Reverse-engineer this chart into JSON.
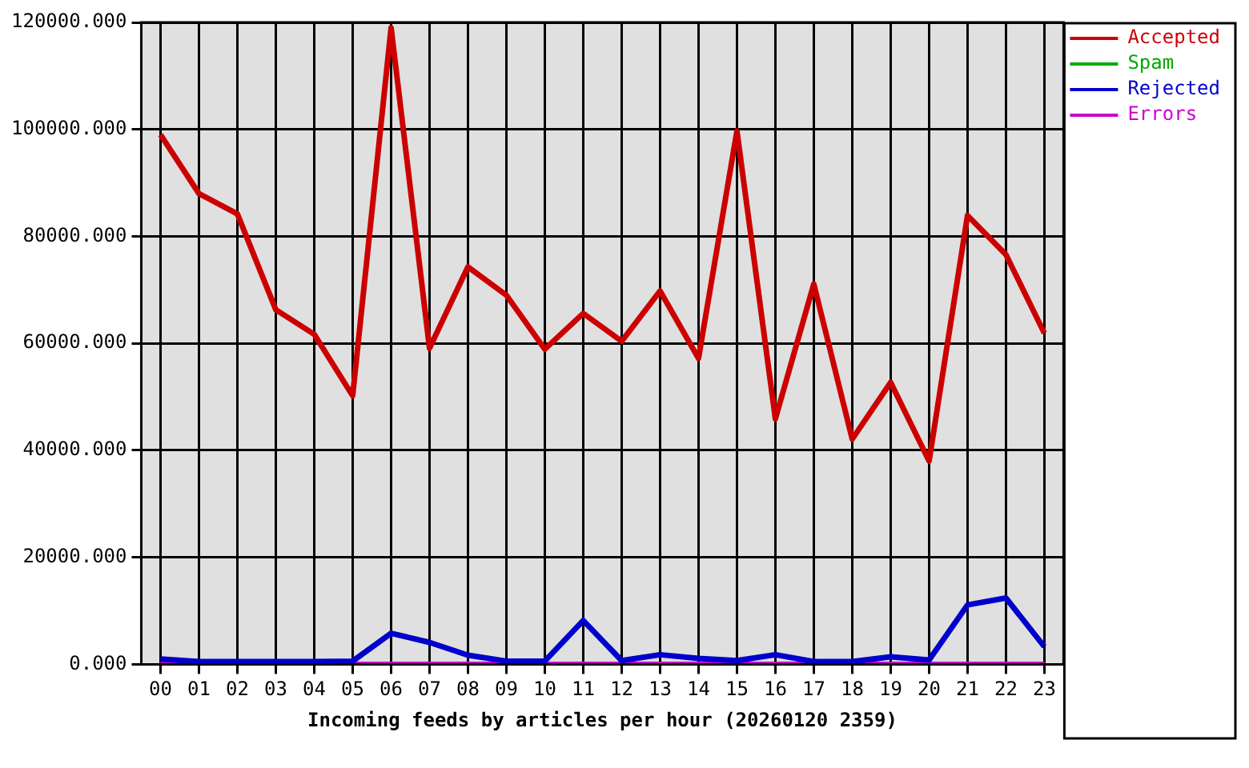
{
  "chart_data": {
    "type": "line",
    "xlabel": "Incoming feeds by articles per hour (20260120 2359)",
    "categories": [
      "00",
      "01",
      "02",
      "03",
      "04",
      "05",
      "06",
      "07",
      "08",
      "09",
      "10",
      "11",
      "12",
      "13",
      "14",
      "15",
      "16",
      "17",
      "18",
      "19",
      "20",
      "21",
      "22",
      "23"
    ],
    "series": [
      {
        "name": "Accepted",
        "color": "#cc0000",
        "values": [
          99000,
          88000,
          84200,
          66300,
          61700,
          50200,
          119000,
          59100,
          74300,
          69000,
          58900,
          65600,
          60400,
          69800,
          57200,
          99700,
          45900,
          71100,
          42100,
          52700,
          38000,
          83900,
          76600,
          61900
        ]
      },
      {
        "name": "Spam",
        "color": "#00aa00",
        "values": [
          null,
          null,
          null,
          null,
          null,
          null,
          null,
          null,
          null,
          null,
          null,
          null,
          null,
          null,
          null,
          null,
          null,
          null,
          null,
          null,
          null,
          null,
          null,
          null
        ]
      },
      {
        "name": "Rejected",
        "color": "#0000cc",
        "values": [
          1000,
          500,
          500,
          500,
          500,
          600,
          5800,
          4100,
          1700,
          600,
          600,
          8200,
          700,
          1800,
          1100,
          700,
          1800,
          500,
          500,
          1400,
          800,
          11100,
          12400,
          3300
        ]
      },
      {
        "name": "Errors",
        "color": "#cc00cc",
        "values": [
          0,
          0,
          0,
          0,
          0,
          0,
          0,
          0,
          0,
          0,
          0,
          0,
          0,
          0,
          0,
          0,
          0,
          0,
          0,
          0,
          0,
          0,
          0,
          0
        ]
      }
    ],
    "ylim": [
      0,
      120000
    ],
    "yticks": [
      {
        "value": 0,
        "label": "0.000"
      },
      {
        "value": 20000,
        "label": "20000.000"
      },
      {
        "value": 40000,
        "label": "40000.000"
      },
      {
        "value": 60000,
        "label": "60000.000"
      },
      {
        "value": 80000,
        "label": "80000.000"
      },
      {
        "value": 100000,
        "label": "100000.000"
      },
      {
        "value": 120000,
        "label": "120000.000"
      }
    ],
    "grid": true,
    "legend": "top right",
    "marker": "none",
    "line_style": "solid"
  }
}
